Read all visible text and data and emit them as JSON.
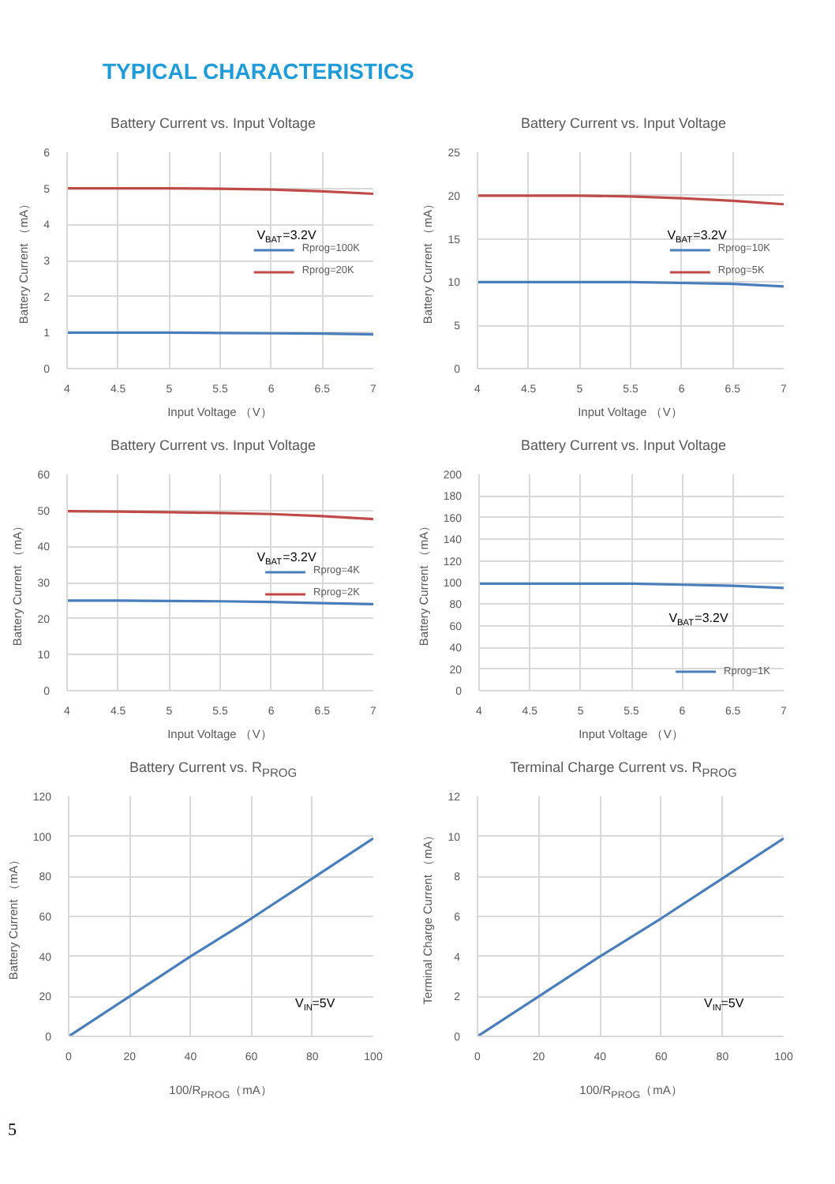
{
  "chart_data": [
    {
      "type": "line",
      "title": "Battery Current vs. Input Voltage",
      "xlabel": "Input Voltage （V）",
      "ylabel": "Battery Current （mA）",
      "annotations": [
        "TYPICAL CHARACTERISTICS",
        "V$_{BAT}$=3.2V"
      ],
      "x": [
        4,
        4.5,
        5,
        5.5,
        6,
        6.5,
        7
      ],
      "series": [
        {
          "name": "Rprog=100K",
          "color": "#4a7ebb",
          "values": [
            1,
            1,
            1,
            0.99,
            0.98,
            0.97,
            0.95
          ]
        },
        {
          "name": "Rprog=20K",
          "color": "#be4b48",
          "values": [
            5,
            5,
            5,
            4.99,
            4.97,
            4.92,
            4.85
          ]
        }
      ],
      "xlim": [
        4,
        7
      ],
      "xticks": [
        4,
        4.5,
        5,
        5.5,
        6,
        6.5,
        7
      ],
      "ylim": [
        0,
        6
      ],
      "yticks": [
        0,
        1,
        2,
        3,
        4,
        5,
        6
      ],
      "grid": true,
      "legend": "right",
      "marker": "none",
      "line_style": "solid"
    },
    {
      "type": "line",
      "title": "Battery Current vs. Input Voltage",
      "xlabel": "Input Voltage （V）",
      "ylabel": "Battery Current （mA）",
      "annotations": [
        "V$_{BAT}$=3.2V"
      ],
      "x": [
        4,
        4.5,
        5,
        5.5,
        6,
        6.5,
        7
      ],
      "series": [
        {
          "name": "Rprog=10K",
          "color": "#4a7ebb",
          "values": [
            10,
            10,
            10,
            10,
            9.9,
            9.8,
            9.5
          ]
        },
        {
          "name": "Rprog=5K",
          "color": "#be4b48",
          "values": [
            20,
            20,
            20,
            19.9,
            19.7,
            19.4,
            19
          ]
        }
      ],
      "xlim": [
        4,
        7
      ],
      "xticks": [
        4,
        4.5,
        5,
        5.5,
        6,
        6.5,
        7
      ],
      "ylim": [
        0,
        25
      ],
      "yticks": [
        0,
        5,
        10,
        15,
        20,
        25
      ],
      "grid": true,
      "legend": "right",
      "marker": "none",
      "line_style": "solid"
    },
    {
      "type": "line",
      "title": "Battery Current vs. Input Voltage",
      "xlabel": "Input Voltage （V）",
      "ylabel": "Battery Current （mA）",
      "annotations": [
        "V$_{BAT}$=3.2V"
      ],
      "x": [
        4,
        4.5,
        5,
        5.5,
        6,
        6.5,
        7
      ],
      "series": [
        {
          "name": "Rprog=4K",
          "color": "#4a7ebb",
          "values": [
            25,
            25,
            24.9,
            24.8,
            24.6,
            24.3,
            24
          ]
        },
        {
          "name": "Rprog=2K",
          "color": "#be4b48",
          "values": [
            49.8,
            49.7,
            49.5,
            49.3,
            49,
            48.4,
            47.6
          ]
        }
      ],
      "xlim": [
        4,
        7
      ],
      "xticks": [
        4,
        4.5,
        5,
        5.5,
        6,
        6.5,
        7
      ],
      "ylim": [
        0,
        60
      ],
      "yticks": [
        0,
        10,
        20,
        30,
        40,
        50,
        60
      ],
      "grid": true,
      "legend": "right",
      "marker": "none",
      "line_style": "solid"
    },
    {
      "type": "line",
      "title": "Battery Current vs. Input Voltage",
      "xlabel": "Input Voltage （V）",
      "ylabel": "Battery Current （mA）",
      "annotations": [
        "V$_{BAT}$=3.2V"
      ],
      "x": [
        4,
        4.5,
        5,
        5.5,
        6,
        6.5,
        7
      ],
      "series": [
        {
          "name": "Rprog=1K",
          "color": "#4a7ebb",
          "values": [
            99,
            99,
            99,
            99,
            98,
            97,
            95
          ]
        }
      ],
      "xlim": [
        4,
        7
      ],
      "xticks": [
        4,
        4.5,
        5,
        5.5,
        6,
        6.5,
        7
      ],
      "ylim": [
        0,
        200
      ],
      "yticks": [
        0,
        20,
        40,
        60,
        80,
        100,
        120,
        140,
        160,
        180,
        200
      ],
      "grid": true,
      "legend": "bottom right",
      "marker": "none",
      "line_style": "solid"
    },
    {
      "type": "line",
      "title": "Battery Current vs. R$_{PROG}$",
      "xlabel": "100/R$_{PROG}$（mA）",
      "ylabel": "Battery Current （mA）",
      "annotations": [
        "V$_{IN}$=5V"
      ],
      "x": [
        0,
        20,
        40,
        60,
        80,
        100
      ],
      "series": [
        {
          "color": "#4a7ebb",
          "values": [
            0,
            20,
            40,
            59,
            79,
            99
          ]
        }
      ],
      "xlim": [
        0,
        100
      ],
      "xticks": [
        0,
        20,
        40,
        60,
        80,
        100
      ],
      "ylim": [
        0,
        120
      ],
      "yticks": [
        0,
        20,
        40,
        60,
        80,
        100,
        120
      ],
      "grid": true,
      "marker": "none",
      "line_style": "solid"
    },
    {
      "type": "line",
      "title": "Terminal Charge Current vs. R$_{PROG}$",
      "xlabel": "100/R$_{PROG}$（mA）",
      "ylabel": "Terminal Charge Current （mA）",
      "annotations": [
        "V$_{IN}$=5V",
        "5"
      ],
      "x": [
        0,
        20,
        40,
        60,
        80,
        100
      ],
      "series": [
        {
          "color": "#4a7ebb",
          "values": [
            0,
            2,
            4,
            5.9,
            7.9,
            9.9
          ]
        }
      ],
      "xlim": [
        0,
        100
      ],
      "xticks": [
        0,
        20,
        40,
        60,
        80,
        100
      ],
      "ylim": [
        0,
        12
      ],
      "yticks": [
        0,
        2,
        4,
        6,
        8,
        10,
        12
      ],
      "grid": true,
      "marker": "none",
      "line_style": "solid"
    }
  ]
}
